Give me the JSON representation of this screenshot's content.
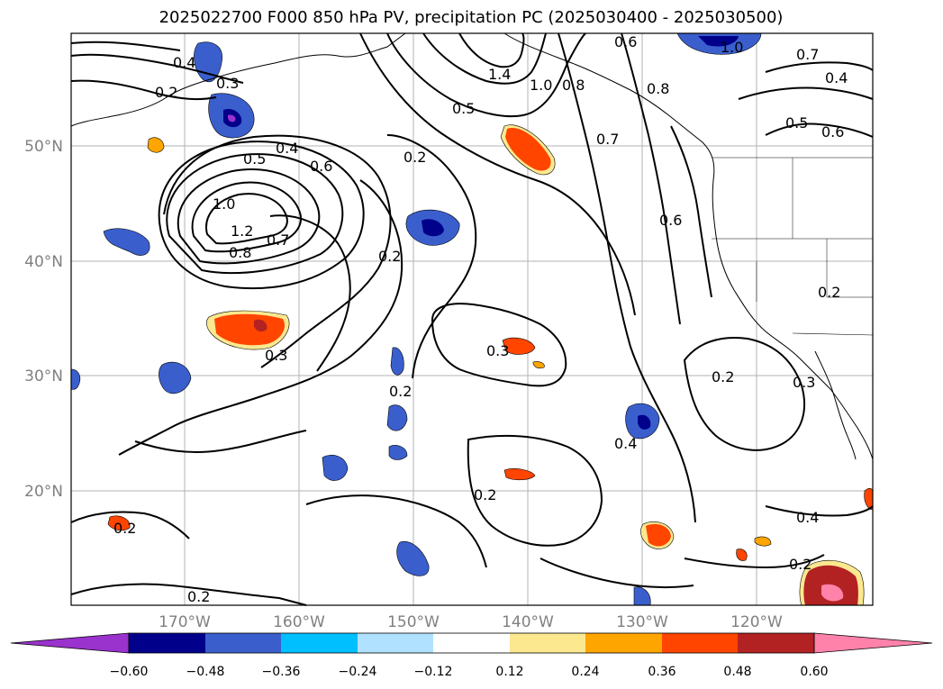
{
  "title": "2025022700 F000 850 hPa PV, precipitation PC (2025030400 - 2025030500)",
  "map": {
    "lat_labels": [
      "50°N",
      "40°N",
      "30°N",
      "20°N"
    ],
    "lon_labels": [
      "170°W",
      "160°W",
      "150°W",
      "140°W",
      "130°W",
      "120°W"
    ],
    "contour_labels": [
      "0.4",
      "0.2",
      "0.3",
      "0.4",
      "0.5",
      "0.6",
      "1.0",
      "1.2",
      "0.8",
      "0.7",
      "0.3",
      "0.2",
      "0.2",
      "0.6",
      "1.4",
      "1.0",
      "0.5",
      "0.8",
      "0.7",
      "0.6",
      "0.8",
      "1.0",
      "0.7",
      "0.4",
      "0.5",
      "0.6",
      "0.2",
      "0.3",
      "0.2",
      "0.4",
      "0.2",
      "0.3",
      "0.2",
      "0.4",
      "0.2",
      "0.2",
      "0.2"
    ]
  },
  "colorbar": {
    "tick_labels": [
      "−0.60",
      "−0.48",
      "−0.36",
      "−0.24",
      "−0.12",
      "0.12",
      "0.24",
      "0.36",
      "0.48",
      "0.60"
    ],
    "colors": [
      "#9a32cd",
      "#00008b",
      "#3a5fcd",
      "#00bfff",
      "#b0e2ff",
      "#ffffff",
      "#fbe88f",
      "#ffa500",
      "#ff4500",
      "#b22222",
      "#ff82ab"
    ]
  }
}
